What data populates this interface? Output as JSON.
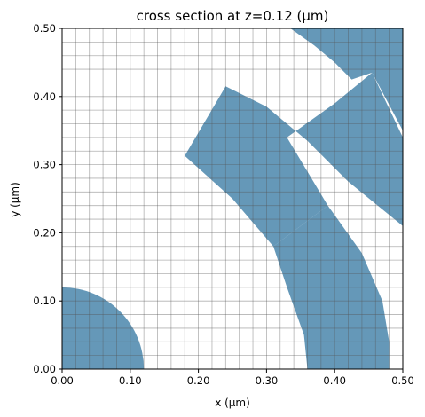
{
  "chart_data": {
    "type": "other",
    "title": "cross section at z=0.12 (μm)",
    "xlabel": "x (μm)",
    "ylabel": "y (μm)",
    "xlim": [
      0,
      0.5
    ],
    "ylim": [
      0,
      0.5
    ],
    "xticks": [
      "0.00",
      "0.10",
      "0.20",
      "0.30",
      "0.40",
      "0.50"
    ],
    "yticks": [
      "0.00",
      "0.10",
      "0.20",
      "0.30",
      "0.40",
      "0.50"
    ],
    "grid": {
      "spacing": 0.02,
      "color": "#555555"
    },
    "fill_color": "#4a86ab",
    "shapes": [
      {
        "name": "center-disk",
        "type": "arc_sector",
        "r_inner": 0,
        "r_outer": 0.12,
        "theta_start": 0,
        "theta_end": 90
      },
      {
        "name": "outer-ring-segment",
        "type": "polygon",
        "points": [
          [
            0.36,
            0
          ],
          [
            0.48,
            0
          ],
          [
            0.48,
            0.04
          ],
          [
            0.47,
            0.1
          ],
          [
            0.44,
            0.17
          ],
          [
            0.39,
            0.24
          ],
          [
            0.31,
            0.18
          ],
          [
            0.33,
            0.12
          ],
          [
            0.355,
            0.05
          ]
        ]
      },
      {
        "name": "angled-arm",
        "type": "polygon",
        "points": [
          [
            0.18,
            0.313
          ],
          [
            0.24,
            0.415
          ],
          [
            0.3,
            0.385
          ],
          [
            0.36,
            0.335
          ],
          [
            0.42,
            0.275
          ],
          [
            0.5,
            0.21
          ],
          [
            0.5,
            0.34
          ],
          [
            0.455,
            0.435
          ],
          [
            0.4,
            0.39
          ],
          [
            0.33,
            0.34
          ],
          [
            0.39,
            0.24
          ],
          [
            0.31,
            0.18
          ],
          [
            0.25,
            0.25
          ]
        ]
      },
      {
        "name": "upper-arc-segment",
        "type": "polygon",
        "points": [
          [
            0.335,
            0.5
          ],
          [
            0.5,
            0.5
          ],
          [
            0.5,
            0.35
          ],
          [
            0.455,
            0.435
          ],
          [
            0.425,
            0.425
          ],
          [
            0.4,
            0.45
          ],
          [
            0.37,
            0.475
          ]
        ]
      }
    ]
  }
}
